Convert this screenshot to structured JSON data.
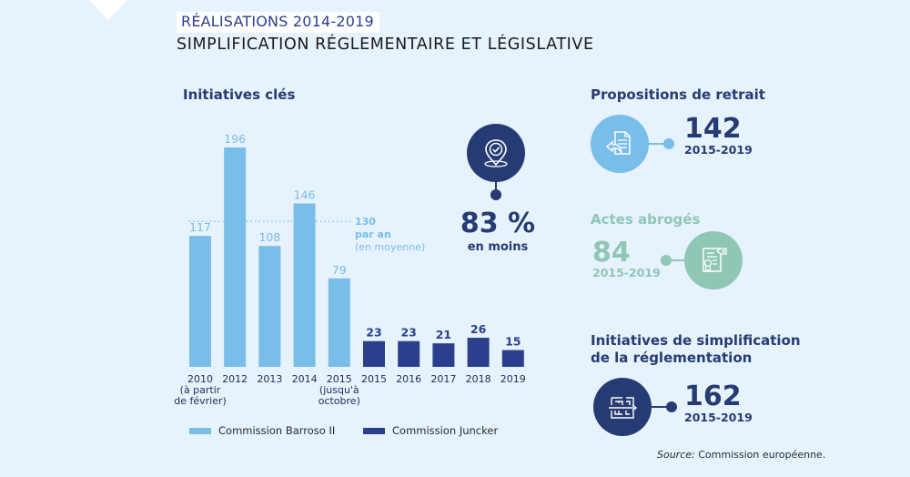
{
  "header": {
    "kicker": "RÉALISATIONS 2014-2019",
    "title": "SIMPLIFICATION RÉGLEMENTAIRE ET LÉGISLATIVE"
  },
  "colors": {
    "background": "#e6f2fc",
    "barroso": "#79bde9",
    "juncker": "#2c3f8c",
    "navy": "#263b73",
    "teal": "#8fc6b6",
    "light_blue_circle": "#79bde9"
  },
  "chart_data": {
    "type": "bar",
    "title": "Initiatives clés",
    "xlabel": "",
    "ylabel": "",
    "ylim": [
      0,
      200
    ],
    "grid": false,
    "categories": [
      [
        "2010",
        "(à partir",
        "de février)"
      ],
      [
        "2012"
      ],
      [
        "2013"
      ],
      [
        "2014"
      ],
      [
        "2015",
        "(jusqu'à",
        "octobre)"
      ],
      [
        "2015"
      ],
      [
        "2016"
      ],
      [
        "2017"
      ],
      [
        "2018"
      ],
      [
        "2019"
      ]
    ],
    "series": [
      {
        "name": "Commission Barroso II",
        "color": "#79bde9",
        "indices": [
          0,
          1,
          2,
          3,
          4
        ],
        "values": [
          117,
          196,
          108,
          146,
          79
        ]
      },
      {
        "name": "Commission Juncker",
        "color": "#2c3f8c",
        "indices": [
          5,
          6,
          7,
          8,
          9
        ],
        "values": [
          23,
          23,
          21,
          26,
          15
        ]
      }
    ],
    "reference_line": {
      "value": 130,
      "label_value": "130",
      "label_line1": "par an",
      "label_line2": "(en moyenne)",
      "style": "dotted"
    },
    "legend": [
      "Commission Barroso II",
      "Commission Juncker"
    ],
    "legend_position": "bottom"
  },
  "reduction": {
    "value": "83 %",
    "label": "en moins",
    "icon": "location-check-icon"
  },
  "stats": {
    "withdrawals": {
      "title": "Propositions de retrait",
      "value": "142",
      "period": "2015-2019",
      "icon": "document-return-icon"
    },
    "repealed": {
      "title": "Actes abrogés",
      "value": "84",
      "period": "2015-2019",
      "icon": "certificate-delete-icon"
    },
    "simplification": {
      "title_line1": "Initiatives de simplification",
      "title_line2": "de la réglementation",
      "value": "162",
      "period": "2015-2019",
      "icon": "maze-arrow-icon"
    }
  },
  "source": {
    "prefix": "Source:",
    "text": " Commission européenne."
  }
}
